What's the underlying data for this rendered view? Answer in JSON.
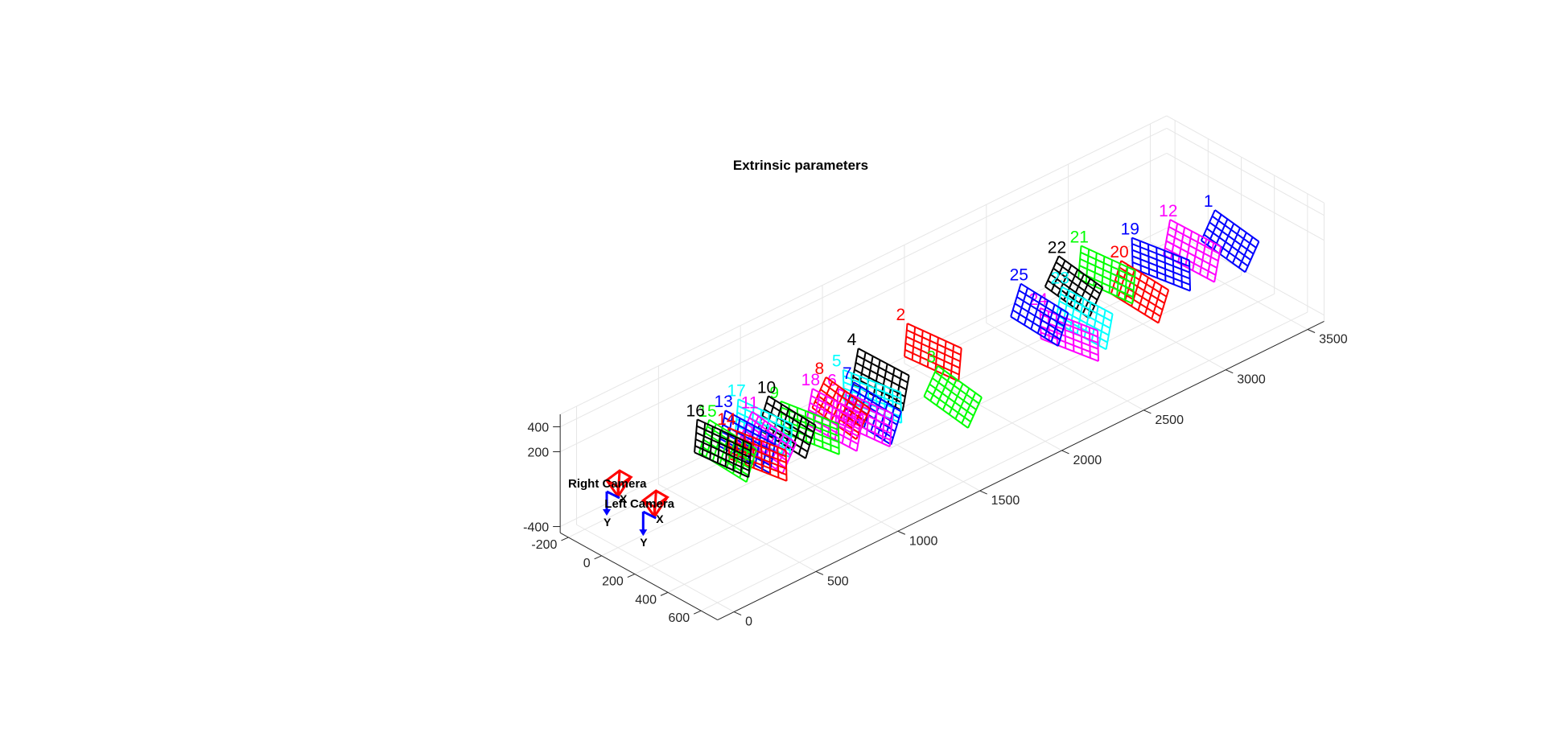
{
  "chart_data": {
    "type": "scatter",
    "title": "Extrinsic parameters",
    "grid": true,
    "axes": {
      "x": {
        "ticks": [
          "-200",
          "0",
          "200",
          "400",
          "600"
        ],
        "range": [
          -250,
          700
        ]
      },
      "z": {
        "ticks": [
          "0",
          "500",
          "1000",
          "1500",
          "2000",
          "2500",
          "3000",
          "3500"
        ],
        "range": [
          -100,
          3600
        ]
      },
      "y": {
        "ticks": [
          "-400",
          "200",
          "400"
        ],
        "range": [
          -450,
          500
        ]
      }
    },
    "cameras": [
      {
        "name": "Right Camera",
        "x": 0,
        "y": 0,
        "z": 0,
        "axis_labels": [
          "X",
          "Y"
        ]
      },
      {
        "name": "Left Camera",
        "x": 220,
        "y": 0,
        "z": 0,
        "axis_labels": [
          "X",
          "Y"
        ]
      }
    ],
    "boards": [
      {
        "label": "1",
        "color": "#0000ff",
        "x": 380,
        "z": 3350,
        "y": 120
      },
      {
        "label": "12",
        "color": "#ff00ff",
        "x": 300,
        "z": 3200,
        "y": 80
      },
      {
        "label": "19",
        "color": "#0000ff",
        "x": 260,
        "z": 3050,
        "y": 40
      },
      {
        "label": "20",
        "color": "#ff0000",
        "x": 330,
        "z": 2850,
        "y": 0
      },
      {
        "label": "21",
        "color": "#00ff00",
        "x": 180,
        "z": 2800,
        "y": 60
      },
      {
        "label": "22",
        "color": "#000000",
        "x": 130,
        "z": 2650,
        "y": 20
      },
      {
        "label": "23",
        "color": "#00ffff",
        "x": 280,
        "z": 2560,
        "y": -60
      },
      {
        "label": "24",
        "color": "#ff00ff",
        "x": 290,
        "z": 2460,
        "y": -120
      },
      {
        "label": "25",
        "color": "#0000ff",
        "x": 120,
        "z": 2450,
        "y": -80
      },
      {
        "label": "2",
        "color": "#ff0000",
        "x": 120,
        "z": 1800,
        "y": 40
      },
      {
        "label": "3",
        "color": "#00ff00",
        "x": 290,
        "z": 1750,
        "y": -160
      },
      {
        "label": "4",
        "color": "#000000",
        "x": 100,
        "z": 1500,
        "y": 0
      },
      {
        "label": "5",
        "color": "#00ffff",
        "x": 130,
        "z": 1420,
        "y": -60
      },
      {
        "label": "6",
        "color": "#ff00ff",
        "x": 180,
        "z": 1320,
        "y": -130
      },
      {
        "label": "7",
        "color": "#0000ff",
        "x": 200,
        "z": 1350,
        "y": -100
      },
      {
        "label": "8",
        "color": "#ff0000",
        "x": 110,
        "z": 1250,
        "y": -60
      },
      {
        "label": "18",
        "color": "#ff00ff",
        "x": 130,
        "z": 1190,
        "y": -100
      },
      {
        "label": "9",
        "color": "#00ff00",
        "x": 120,
        "z": 1050,
        "y": -80
      },
      {
        "label": "10",
        "color": "#000000",
        "x": 80,
        "z": 950,
        "y": -40
      },
      {
        "label": "17",
        "color": "#00ffff",
        "x": 20,
        "z": 870,
        "y": -40
      },
      {
        "label": "11",
        "color": "#ff00ff",
        "x": 70,
        "z": 840,
        "y": -100
      },
      {
        "label": "13",
        "color": "#0000ff",
        "x": 30,
        "z": 760,
        "y": -70
      },
      {
        "label": "14",
        "color": "#ff0000",
        "x": 110,
        "z": 740,
        "y": -100
      },
      {
        "label": "15",
        "color": "#00ff00",
        "x": 20,
        "z": 650,
        "y": -80
      },
      {
        "label": "16",
        "color": "#000000",
        "x": 20,
        "z": 620,
        "y": -40
      }
    ]
  }
}
